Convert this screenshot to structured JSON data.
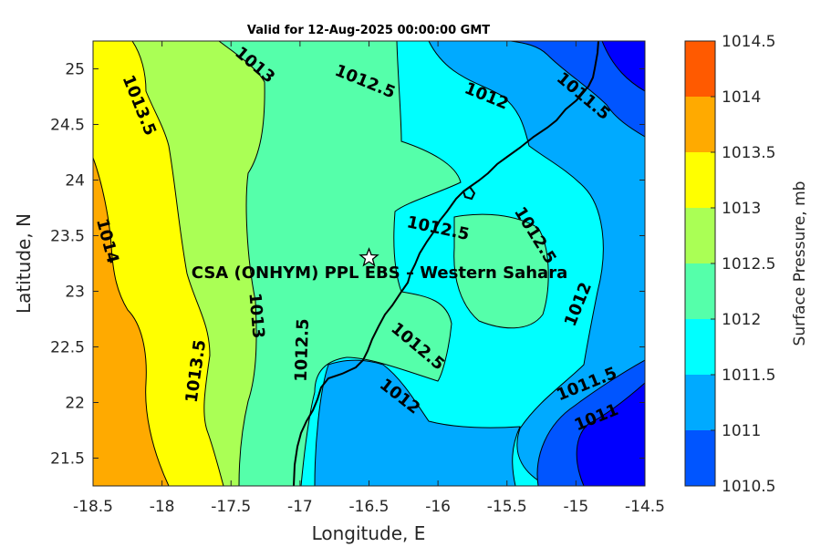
{
  "chart_data": {
    "type": "contour",
    "title": "Valid for 12-Aug-2025 00:00:00 GMT",
    "xlabel": "Longitude, E",
    "ylabel": "Latitude, N",
    "xlim": [
      -18.5,
      -14.5
    ],
    "ylim": [
      21.25,
      25.25
    ],
    "xticks": [
      "-18.5",
      "-18",
      "-17.5",
      "-17",
      "-16.5",
      "-16",
      "-15.5",
      "-15",
      "-14.5"
    ],
    "yticks": [
      "25",
      "24.5",
      "24",
      "23.5",
      "23",
      "22.5",
      "22",
      "21.5"
    ],
    "colorbar": {
      "label": "Surface Pressure, mb",
      "levels": [
        "1014.5",
        "1014",
        "1013.5",
        "1013",
        "1012.5",
        "1012",
        "1011.5",
        "1011",
        "1010.5"
      ],
      "colors": [
        "#ff5a00",
        "#ffaa00",
        "#ffff00",
        "#aaff55",
        "#55ffaa",
        "#00ffff",
        "#00aaff",
        "#0055ff",
        "#0000ff"
      ]
    },
    "contour_labels": [
      {
        "text": "1013",
        "lon": -17.33,
        "lat": 25.03
      },
      {
        "text": "1013.5",
        "lon": -18.17,
        "lat": 24.67
      },
      {
        "text": "1012.5",
        "lon": -16.53,
        "lat": 24.88
      },
      {
        "text": "1012",
        "lon": -15.65,
        "lat": 24.75
      },
      {
        "text": "1011.5",
        "lon": -14.95,
        "lat": 24.75
      },
      {
        "text": "1014",
        "lon": -18.4,
        "lat": 23.45
      },
      {
        "text": "1012.5",
        "lon": -16.0,
        "lat": 23.56
      },
      {
        "text": "1012.5",
        "lon": -15.3,
        "lat": 23.5
      },
      {
        "text": "1012",
        "lon": -14.98,
        "lat": 22.88
      },
      {
        "text": "1013",
        "lon": -17.32,
        "lat": 22.78
      },
      {
        "text": "1012.5",
        "lon": -16.98,
        "lat": 22.47
      },
      {
        "text": "1013.5",
        "lon": -17.75,
        "lat": 22.28
      },
      {
        "text": "1012.5",
        "lon": -16.15,
        "lat": 22.5
      },
      {
        "text": "1012",
        "lon": -16.28,
        "lat": 22.05
      },
      {
        "text": "1011.5",
        "lon": -14.92,
        "lat": 22.16
      },
      {
        "text": "1011",
        "lon": -14.85,
        "lat": 21.86
      }
    ],
    "site": {
      "name": "CSA (ONHYM) PPL EBS – Western Sahara",
      "lon": -16.5,
      "lat": 23.3,
      "marker": "star"
    }
  }
}
